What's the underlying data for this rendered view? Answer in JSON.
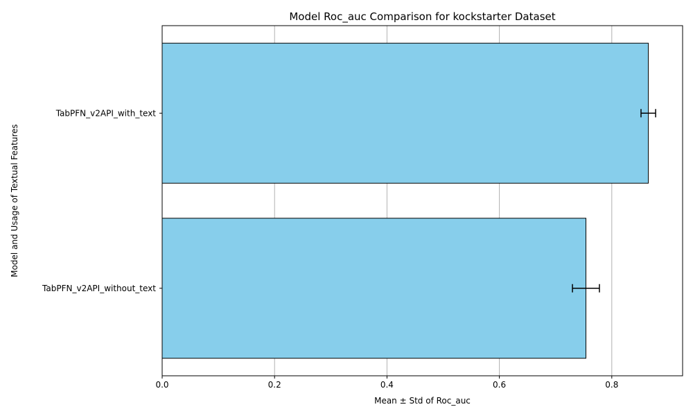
{
  "chart_data": {
    "type": "bar",
    "orientation": "horizontal",
    "title": "Model Roc_auc Comparison for kockstarter Dataset",
    "xlabel": "Mean ± Std of Roc_auc",
    "ylabel": "Model and Usage of Textual Features",
    "categories": [
      "TabPFN_v2API_with_text",
      "TabPFN_v2API_without_text"
    ],
    "values": [
      0.865,
      0.754
    ],
    "errors": [
      0.013,
      0.024
    ],
    "xlim": [
      0.0,
      0.926
    ],
    "xticks": [
      0.0,
      0.2,
      0.4,
      0.6,
      0.8
    ],
    "xtick_labels": [
      "0.0",
      "0.2",
      "0.4",
      "0.6",
      "0.8"
    ],
    "grid": "x",
    "bar_color": "#87ceeb",
    "bar_edge_color": "#000000",
    "grid_color": "#b0b0b0"
  }
}
